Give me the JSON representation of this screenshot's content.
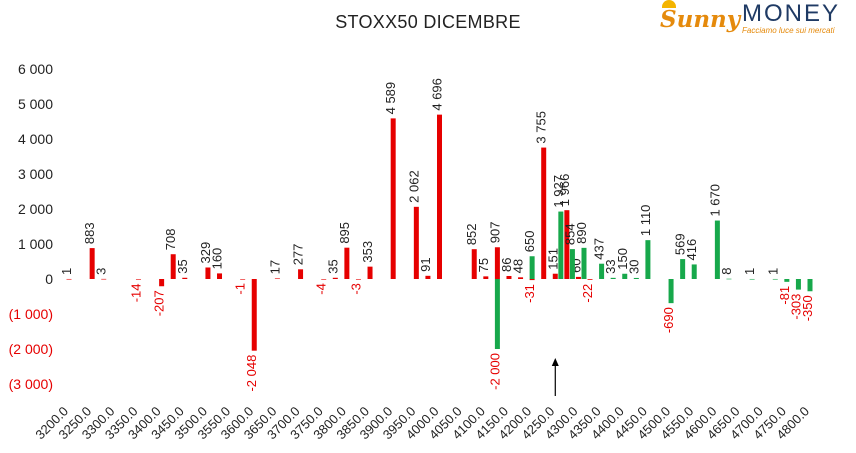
{
  "logo": {
    "sunny": "Sunny",
    "money": "MONEY",
    "tagline": "Facciamo luce sui mercati"
  },
  "chart_data": {
    "type": "bar",
    "title": "STOXX50 DICEMBRE",
    "xlabel": "",
    "ylabel": "",
    "ylim": [
      -3000,
      6000
    ],
    "grid": false,
    "legend": "none",
    "y_ticks": [
      {
        "value": 6000,
        "label": "6 000"
      },
      {
        "value": 5000,
        "label": "5 000"
      },
      {
        "value": 4000,
        "label": "4 000"
      },
      {
        "value": 3000,
        "label": "3 000"
      },
      {
        "value": 2000,
        "label": "2 000"
      },
      {
        "value": 1000,
        "label": "1 000"
      },
      {
        "value": 0,
        "label": "0"
      },
      {
        "value": -1000,
        "label": "(1 000)"
      },
      {
        "value": -2000,
        "label": "(2 000)"
      },
      {
        "value": -3000,
        "label": "(3 000)"
      }
    ],
    "categories": [
      "3200.0",
      "3250.0",
      "3300.0",
      "3350.0",
      "3400.0",
      "3450.0",
      "3500.0",
      "3550.0",
      "3600.0",
      "3650.0",
      "3700.0",
      "3750.0",
      "3800.0",
      "3850.0",
      "3900.0",
      "3950.0",
      "4000.0",
      "4050.0",
      "4100.0",
      "4150.0",
      "4200.0",
      "4250.0",
      "4300.0",
      "4350.0",
      "4400.0",
      "4450.0",
      "4500.0",
      "4550.0",
      "4600.0",
      "4650.0",
      "4700.0",
      "4750.0",
      "4800.0"
    ],
    "series": [
      {
        "color": "#e60000",
        "points": [
          {
            "x": 3200,
            "y": 1,
            "label": "1"
          },
          {
            "x": 3250,
            "y": 883,
            "label": "883"
          },
          {
            "x": 3275,
            "y": 3,
            "label": "3"
          },
          {
            "x": 3350,
            "y": -14,
            "label": "-14"
          },
          {
            "x": 3400,
            "y": -207,
            "label": "-207"
          },
          {
            "x": 3425,
            "y": 708,
            "label": "708"
          },
          {
            "x": 3450,
            "y": 35,
            "label": "35"
          },
          {
            "x": 3500,
            "y": 329,
            "label": "329"
          },
          {
            "x": 3525,
            "y": 160,
            "label": "160"
          },
          {
            "x": 3575,
            "y": -1,
            "label": "-1"
          },
          {
            "x": 3600,
            "y": -2048,
            "label": "-2 048"
          },
          {
            "x": 3650,
            "y": 17,
            "label": "17"
          },
          {
            "x": 3700,
            "y": 277,
            "label": "277"
          },
          {
            "x": 3750,
            "y": -4,
            "label": "-4"
          },
          {
            "x": 3775,
            "y": 35,
            "label": "35"
          },
          {
            "x": 3800,
            "y": 895,
            "label": "895"
          },
          {
            "x": 3825,
            "y": -3,
            "label": "-3"
          },
          {
            "x": 3850,
            "y": 353,
            "label": "353"
          },
          {
            "x": 3900,
            "y": 4589,
            "label": "4 589"
          },
          {
            "x": 3950,
            "y": 2062,
            "label": "2 062"
          },
          {
            "x": 3975,
            "y": 91,
            "label": "91"
          },
          {
            "x": 4000,
            "y": 4696,
            "label": "4 696"
          },
          {
            "x": 4075,
            "y": 852,
            "label": "852"
          },
          {
            "x": 4100,
            "y": 75,
            "label": "75"
          },
          {
            "x": 4125,
            "y": 907,
            "label": "907"
          },
          {
            "x": 4150,
            "y": 86,
            "label": "86"
          },
          {
            "x": 4175,
            "y": 48,
            "label": "48"
          },
          {
            "x": 4200,
            "y": -31,
            "label": "-31"
          },
          {
            "x": 4225,
            "y": 3755,
            "label": "3 755"
          },
          {
            "x": 4250,
            "y": 151,
            "label": "151"
          },
          {
            "x": 4275,
            "y": 1966,
            "label": "1 966"
          },
          {
            "x": 4300,
            "y": 60,
            "label": "60"
          },
          {
            "x": 4325,
            "y": -22,
            "label": "-22"
          }
        ]
      },
      {
        "color": "#17a84b",
        "points": [
          {
            "x": 4125,
            "y": -2000,
            "label": "-2 000"
          },
          {
            "x": 4200,
            "y": 650,
            "label": "650"
          },
          {
            "x": 4262,
            "y": 1927,
            "label": "1 927"
          },
          {
            "x": 4287,
            "y": 854,
            "label": "854"
          },
          {
            "x": 4312,
            "y": 890,
            "label": "890"
          },
          {
            "x": 4350,
            "y": 437,
            "label": "437"
          },
          {
            "x": 4375,
            "y": 33,
            "label": "33"
          },
          {
            "x": 4400,
            "y": 150,
            "label": "150"
          },
          {
            "x": 4425,
            "y": 30,
            "label": "30"
          },
          {
            "x": 4450,
            "y": 1110,
            "label": "1 110"
          },
          {
            "x": 4500,
            "y": -690,
            "label": "-690"
          },
          {
            "x": 4525,
            "y": 569,
            "label": "569"
          },
          {
            "x": 4550,
            "y": 416,
            "label": "416"
          },
          {
            "x": 4600,
            "y": 1670,
            "label": "1 670"
          },
          {
            "x": 4625,
            "y": 8,
            "label": "8"
          },
          {
            "x": 4675,
            "y": 1,
            "label": "1"
          },
          {
            "x": 4725,
            "y": 1,
            "label": "1"
          },
          {
            "x": 4750,
            "y": -81,
            "label": "-81"
          },
          {
            "x": 4775,
            "y": -303,
            "label": "-303"
          },
          {
            "x": 4800,
            "y": -350,
            "label": "-350"
          }
        ]
      }
    ],
    "annotation_arrow_x": 4250
  }
}
